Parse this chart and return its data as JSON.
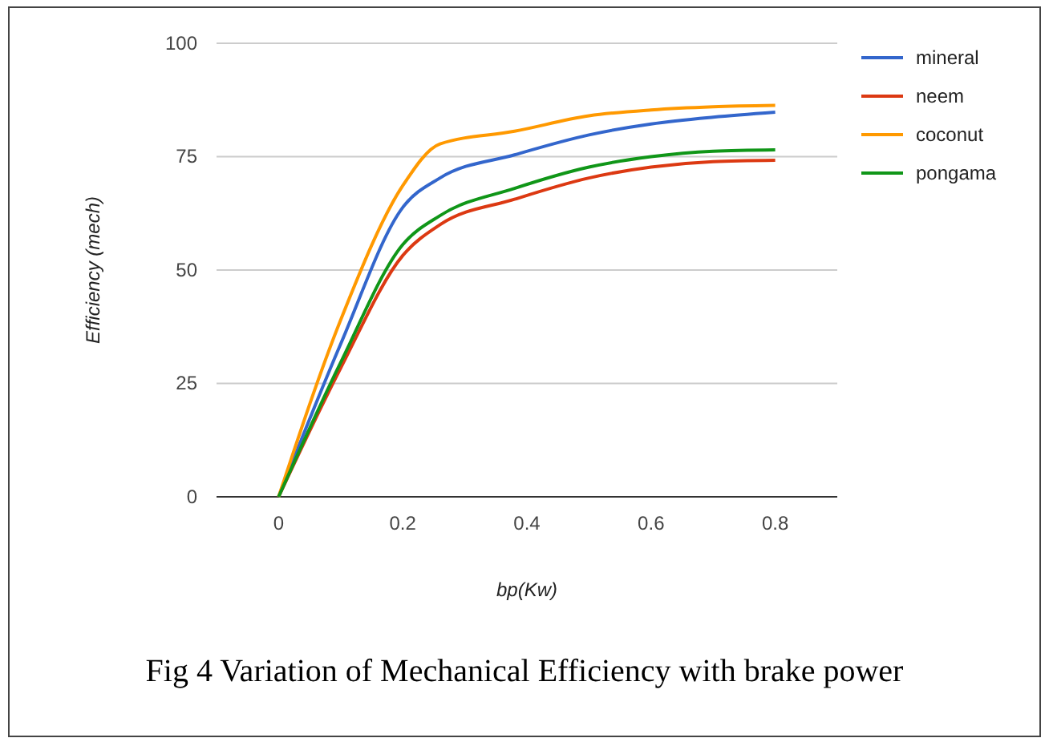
{
  "chart_data": {
    "type": "line",
    "xlabel": "bp(Kw)",
    "ylabel": "Efficiency (mech)",
    "annotations": [
      "Fig 4 Variation of Mechanical Efficiency with brake power"
    ],
    "x": [
      0,
      0.1,
      0.2,
      0.26,
      0.38,
      0.5,
      0.6,
      0.7,
      0.8
    ],
    "series": [
      {
        "name": "mineral",
        "color": "#3366cc",
        "values": [
          0,
          33.7,
          63.8,
          70.3,
          75.4,
          79.8,
          82.2,
          83.7,
          84.8
        ]
      },
      {
        "name": "neem",
        "color": "#dc3912",
        "values": [
          0,
          28.4,
          53.2,
          60,
          65.6,
          70.3,
          72.7,
          73.9,
          74.2
        ]
      },
      {
        "name": "coconut",
        "color": "#ff9900",
        "values": [
          0,
          39,
          68.6,
          77.8,
          80.6,
          84,
          85.3,
          86,
          86.3
        ]
      },
      {
        "name": "pongama",
        "color": "#109618",
        "values": [
          0,
          29.6,
          55.6,
          62,
          68,
          72.7,
          75,
          76.2,
          76.5
        ]
      }
    ],
    "xlim": [
      -0.1,
      0.9
    ],
    "ylim": [
      0,
      100
    ],
    "xticks": [
      0,
      0.2,
      0.4,
      0.6,
      0.8
    ],
    "yticks": [
      0,
      25,
      50,
      75,
      100
    ],
    "grid": "y",
    "legend": "right",
    "marker": "none",
    "line_style": "solid"
  }
}
